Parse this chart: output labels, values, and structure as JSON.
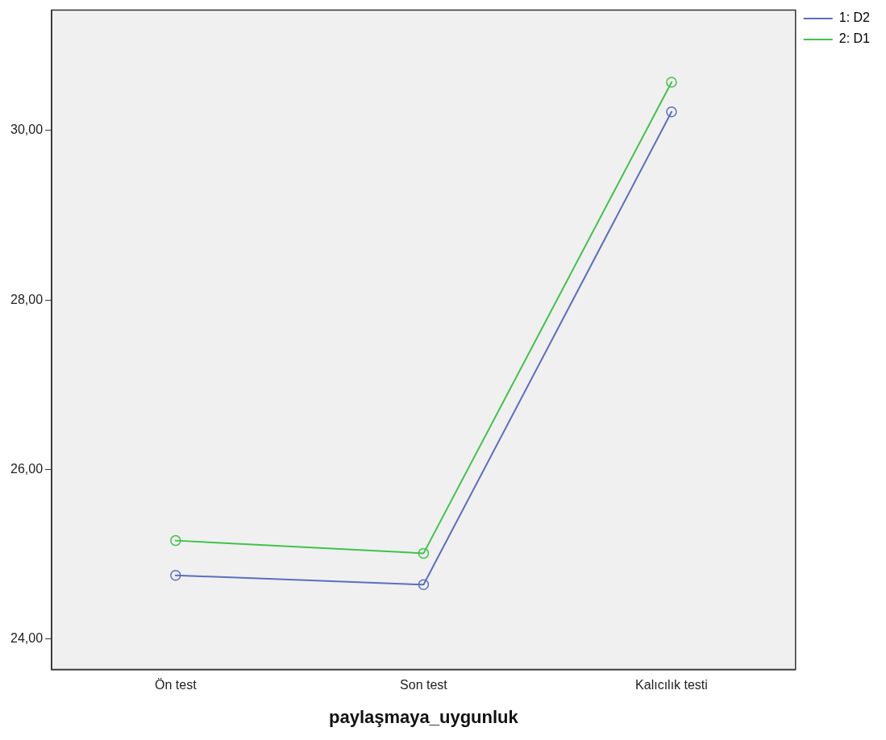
{
  "chart_data": {
    "type": "line",
    "xlabel": "paylaşmaya_uygunluk",
    "categories": [
      "Ön test",
      "Son test",
      "Kalıcılık testi"
    ],
    "series": [
      {
        "name": "1: D2",
        "color": "#5a6fc0",
        "values": [
          24.75,
          24.64,
          30.22
        ]
      },
      {
        "name": "2: D1",
        "color": "#3fc34a",
        "values": [
          25.16,
          25.01,
          30.57
        ]
      }
    ],
    "ylim": [
      23.64,
      31.42
    ],
    "yticks": [
      {
        "value": 24,
        "label": "24,00"
      },
      {
        "value": 26,
        "label": "26,00"
      },
      {
        "value": 28,
        "label": "28,00"
      },
      {
        "value": 30,
        "label": "30,00"
      }
    ],
    "grid": false,
    "legend": "top right",
    "marker": "circle",
    "line_style": "solid"
  }
}
